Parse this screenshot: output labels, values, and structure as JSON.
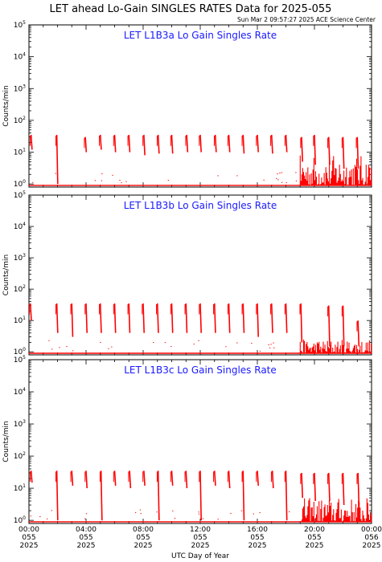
{
  "header": {
    "title": "LET ahead Lo-Gain SINGLES RATES Data for 2025-055",
    "timestamp": "Sun Mar  2 09:57:27 2025 ACE Science Center"
  },
  "colors": {
    "data": "#ff0000",
    "panel_title": "#1a1aff",
    "axes": "#000000"
  },
  "chart_data": [
    {
      "type": "line",
      "title": "LET L1B3a Lo Gain Singles Rate",
      "ylabel": "Counts/min",
      "xlabel": "UTC Day of Year",
      "yscale": "log",
      "ylim": [
        0.8,
        100000
      ],
      "xlim": [
        0,
        24
      ],
      "spikes": {
        "x": [
          0.15,
          1.95,
          3.95,
          5.0,
          6.0,
          7.0,
          8.05,
          9.05,
          10.0,
          11.05,
          12.0,
          13.05,
          14.0,
          15.0,
          16.0,
          17.0,
          18.0,
          19.1,
          20.0,
          21.0,
          22.0,
          23.0
        ],
        "peak": [
          35,
          35,
          30,
          35,
          35,
          35,
          35,
          35,
          35,
          35,
          35,
          35,
          35,
          35,
          35,
          35,
          35,
          30,
          35,
          30,
          30,
          30
        ],
        "base": [
          12,
          1,
          10,
          12,
          10,
          10,
          8,
          9,
          9,
          10,
          10,
          10,
          10,
          9,
          10,
          9,
          10,
          5,
          4,
          4,
          3,
          3
        ]
      },
      "baseline": 0.9,
      "noise_onset": 19.0,
      "noise_max": 8
    },
    {
      "type": "line",
      "title": "LET L1B3b Lo Gain Singles Rate",
      "ylabel": "Counts/min",
      "xlabel": "UTC Day of Year",
      "yscale": "log",
      "ylim": [
        0.8,
        100000
      ],
      "xlim": [
        0,
        24
      ],
      "spikes": {
        "x": [
          0.1,
          1.95,
          3.0,
          4.0,
          5.0,
          6.0,
          7.0,
          8.0,
          9.0,
          10.0,
          11.0,
          12.0,
          13.0,
          14.0,
          15.0,
          16.0,
          17.0,
          18.0,
          19.05,
          21.0,
          22.0,
          23.05
        ],
        "peak": [
          35,
          35,
          35,
          35,
          35,
          35,
          35,
          35,
          35,
          35,
          35,
          35,
          35,
          35,
          35,
          35,
          35,
          35,
          35,
          30,
          30,
          10
        ],
        "base": [
          10,
          4,
          3,
          4,
          4,
          4,
          4,
          4,
          4,
          4,
          4,
          4,
          4,
          4,
          4,
          3,
          4,
          4,
          2,
          1.5,
          1.5,
          1.5
        ]
      },
      "baseline": 0.9,
      "noise_onset": 19.0,
      "noise_max": 2.5
    },
    {
      "type": "line",
      "title": "LET L1B3c Lo Gain Singles Rate",
      "ylabel": "Counts/min",
      "xlabel": "UTC Day of Year",
      "yscale": "log",
      "ylim": [
        0.8,
        100000
      ],
      "xlim": [
        0,
        24
      ],
      "spikes": {
        "x": [
          0.15,
          1.95,
          3.0,
          4.0,
          5.05,
          6.0,
          7.05,
          8.05,
          9.05,
          10.0,
          11.0,
          12.0,
          13.0,
          14.0,
          15.0,
          16.0,
          17.05,
          18.0,
          19.1,
          20.0,
          21.0,
          22.0,
          23.05
        ],
        "peak": [
          35,
          35,
          35,
          35,
          35,
          35,
          35,
          35,
          35,
          35,
          35,
          35,
          35,
          35,
          35,
          35,
          35,
          35,
          30,
          30,
          30,
          30,
          30
        ],
        "base": [
          15,
          1,
          12,
          10,
          1,
          12,
          10,
          12,
          1,
          12,
          10,
          1,
          12,
          10,
          1,
          12,
          10,
          1,
          5,
          4,
          4,
          3,
          3
        ]
      },
      "baseline": 0.9,
      "noise_onset": 19.0,
      "noise_max": 5
    }
  ],
  "shared_axes": {
    "y_tick_labels": [
      "10",
      "10",
      "10",
      "10",
      "10",
      "10"
    ],
    "y_tick_exponents": [
      "0",
      "1",
      "2",
      "3",
      "4",
      "5"
    ],
    "x_tick_labels": [
      [
        "00:00",
        "055",
        "2025"
      ],
      [
        "04:00",
        "055",
        "2025"
      ],
      [
        "08:00",
        "055",
        "2025"
      ],
      [
        "12:00",
        "055",
        "2025"
      ],
      [
        "16:00",
        "055",
        "2025"
      ],
      [
        "20:00",
        "055",
        "2025"
      ],
      [
        "00:00",
        "056",
        "2025"
      ]
    ],
    "x_tick_hours": [
      0,
      4,
      8,
      12,
      16,
      20,
      24
    ]
  }
}
